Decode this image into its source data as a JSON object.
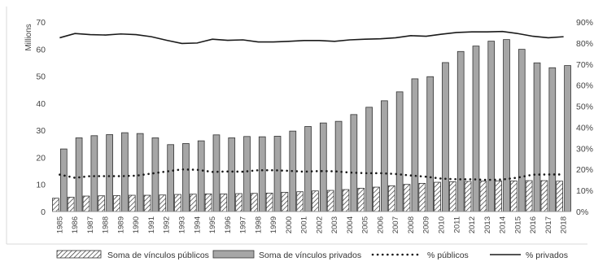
{
  "chart_data": {
    "type": "bar",
    "categories": [
      "1985",
      "1986",
      "1987",
      "1988",
      "1989",
      "1990",
      "1991",
      "1992",
      "1993",
      "1994",
      "1995",
      "1996",
      "1997",
      "1998",
      "1999",
      "2000",
      "2001",
      "2002",
      "2003",
      "2004",
      "2005",
      "2006",
      "2007",
      "2008",
      "2009",
      "2010",
      "2011",
      "2012",
      "2013",
      "2014",
      "2015",
      "2016",
      "2017",
      "2018"
    ],
    "series": [
      {
        "name": "Soma de vínculos públicos",
        "kind": "bar",
        "axis": "left",
        "pattern": "diagonal-hatch",
        "values": [
          4.9,
          5.3,
          5.7,
          5.8,
          5.9,
          6.0,
          6.0,
          6.1,
          6.3,
          6.4,
          6.5,
          6.5,
          6.6,
          6.7,
          6.8,
          7.1,
          7.3,
          7.6,
          7.8,
          8.1,
          8.6,
          9.0,
          9.5,
          10.0,
          10.4,
          10.8,
          11.0,
          11.1,
          11.2,
          11.3,
          11.3,
          11.4,
          11.4,
          11.2
        ]
      },
      {
        "name": "Soma de vínculos privados",
        "kind": "bar",
        "axis": "left",
        "color": "#a6a6a6",
        "values": [
          23.1,
          27.2,
          28.0,
          28.4,
          29.1,
          28.8,
          27.2,
          24.7,
          25.1,
          26.1,
          28.3,
          27.2,
          27.7,
          27.6,
          27.8,
          29.7,
          31.4,
          32.7,
          33.3,
          35.8,
          38.5,
          40.9,
          44.2,
          49.0,
          49.8,
          55.0,
          59.1,
          61.1,
          62.9,
          63.5,
          59.9,
          54.9,
          53.1,
          53.9
        ]
      },
      {
        "name": "% públicos",
        "kind": "line",
        "axis": "right",
        "style": "dotted",
        "values": [
          17.5,
          16.0,
          16.8,
          16.8,
          16.8,
          17.0,
          18.0,
          19.0,
          20.0,
          19.8,
          18.8,
          19.0,
          18.9,
          19.6,
          19.6,
          19.3,
          18.9,
          19.2,
          19.1,
          18.5,
          18.2,
          18.2,
          17.8,
          17.1,
          16.5,
          15.6,
          15.3,
          15.3,
          15.0,
          15.2,
          16.1,
          17.5,
          17.6,
          17.6
        ]
      },
      {
        "name": "% privados",
        "kind": "line",
        "axis": "right",
        "style": "solid",
        "values": [
          82.5,
          84.5,
          84.0,
          83.8,
          84.3,
          84.0,
          83.0,
          81.3,
          79.8,
          80.0,
          81.8,
          81.3,
          81.5,
          80.5,
          80.5,
          80.8,
          81.2,
          81.2,
          80.8,
          81.5,
          81.8,
          82.0,
          82.5,
          83.5,
          83.2,
          84.2,
          85.0,
          85.3,
          85.3,
          85.5,
          84.5,
          83.2,
          82.5,
          83.0
        ]
      }
    ],
    "left_axis": {
      "label": "Millions",
      "ylim": [
        0,
        70
      ],
      "ticks": [
        "0",
        "10",
        "20",
        "30",
        "40",
        "50",
        "60",
        "70"
      ]
    },
    "right_axis": {
      "ylim": [
        0,
        90
      ],
      "ticks": [
        "0%",
        "10%",
        "20%",
        "30%",
        "40%",
        "50%",
        "60%",
        "70%",
        "80%",
        "90%"
      ]
    },
    "legend": {
      "position": "bottom"
    },
    "grid": false,
    "colors": {
      "bar_private": "#a6a6a6",
      "bar_edge": "#333333",
      "line": "#1a1a1a"
    }
  }
}
